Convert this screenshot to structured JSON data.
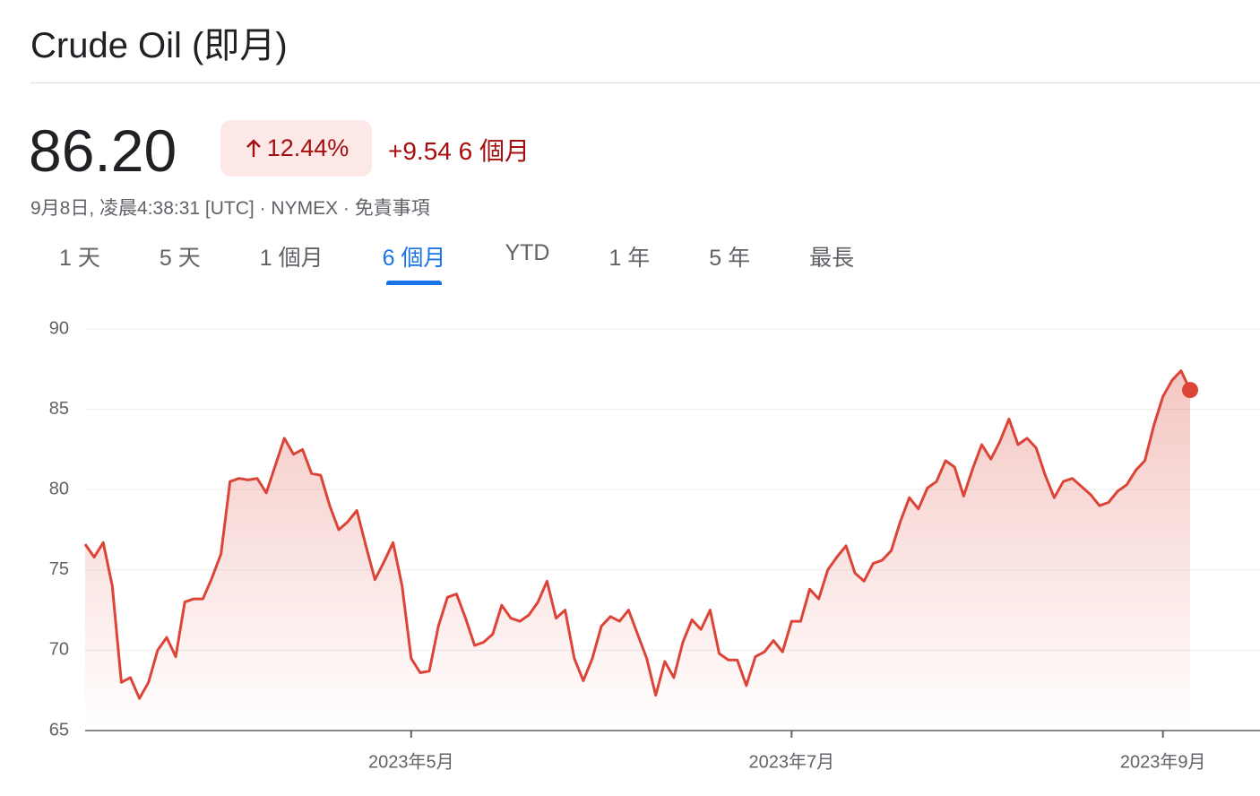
{
  "header": {
    "title": "Crude Oil (即月)",
    "price": "86.20",
    "change_pct": "12.44%",
    "change": "+9.54",
    "period": "6 個月",
    "meta": "9月8日, 凌晨4:38:31 [UTC] · NYMEX · ",
    "disclaimer": "免責事項"
  },
  "tabs": [
    "1 天",
    "5 天",
    "1 個月",
    "6 個月",
    "YTD",
    "1 年",
    "5 年",
    "最長"
  ],
  "active_tab": 3,
  "chart_data": {
    "type": "line",
    "color": "#db4437",
    "categories": [
      null,
      null,
      null,
      null,
      null,
      null,
      null,
      null,
      null,
      null,
      null,
      null,
      null,
      null,
      null,
      null,
      null,
      null,
      null,
      null,
      null,
      null,
      null,
      null,
      null,
      null,
      null,
      null,
      null,
      null,
      null,
      null,
      null,
      null,
      null,
      null,
      "2023年5月",
      null,
      null,
      null,
      null,
      null,
      null,
      null,
      null,
      null,
      null,
      null,
      null,
      null,
      null,
      null,
      null,
      null,
      null,
      null,
      null,
      null,
      null,
      null,
      null,
      null,
      null,
      null,
      null,
      null,
      null,
      null,
      null,
      null,
      null,
      null,
      null,
      null,
      null,
      null,
      null,
      null,
      "2023年7月",
      null,
      null,
      null,
      null,
      null,
      null,
      null,
      null,
      null,
      null,
      null,
      null,
      null,
      null,
      null,
      null,
      null,
      null,
      null,
      null,
      null,
      null,
      null,
      null,
      null,
      null,
      null,
      null,
      null,
      null,
      null,
      null,
      null,
      null,
      null,
      null,
      null,
      null,
      null,
      null,
      "2023年9月",
      null,
      null,
      null
    ],
    "values": [
      76.6,
      75.8,
      76.7,
      74.0,
      68.0,
      68.3,
      67.0,
      68.0,
      70.0,
      70.8,
      69.6,
      73.0,
      73.2,
      73.2,
      74.5,
      76.0,
      80.5,
      80.7,
      80.6,
      80.7,
      79.8,
      81.5,
      83.2,
      82.2,
      82.5,
      81.0,
      80.9,
      79.0,
      77.5,
      78.0,
      78.7,
      76.5,
      74.4,
      75.5,
      76.7,
      74.0,
      69.5,
      68.6,
      68.7,
      71.5,
      73.3,
      73.5,
      72.0,
      70.3,
      70.5,
      71.0,
      72.8,
      72.0,
      71.8,
      72.2,
      73.0,
      74.3,
      72.0,
      72.5,
      69.5,
      68.1,
      69.5,
      71.5,
      72.1,
      71.8,
      72.5,
      71.0,
      69.5,
      67.2,
      69.3,
      68.3,
      70.5,
      71.9,
      71.3,
      72.5,
      69.8,
      69.4,
      69.4,
      67.8,
      69.6,
      69.9,
      70.6,
      69.9,
      71.8,
      71.8,
      73.8,
      73.2,
      75.0,
      75.8,
      76.5,
      74.8,
      74.3,
      75.4,
      75.6,
      76.2,
      78.0,
      79.5,
      78.8,
      80.1,
      80.5,
      81.8,
      81.4,
      79.6,
      81.3,
      82.8,
      81.9,
      83.0,
      84.4,
      82.8,
      83.2,
      82.6,
      80.9,
      79.5,
      80.5,
      80.7,
      80.2,
      79.7,
      79.0,
      79.2,
      79.9,
      80.3,
      81.2,
      81.8,
      84.0,
      85.8,
      86.8,
      87.4,
      86.2
    ],
    "ylim": [
      65,
      90
    ],
    "yticks": [
      65,
      70,
      75,
      80,
      85,
      90
    ],
    "grid": true
  }
}
